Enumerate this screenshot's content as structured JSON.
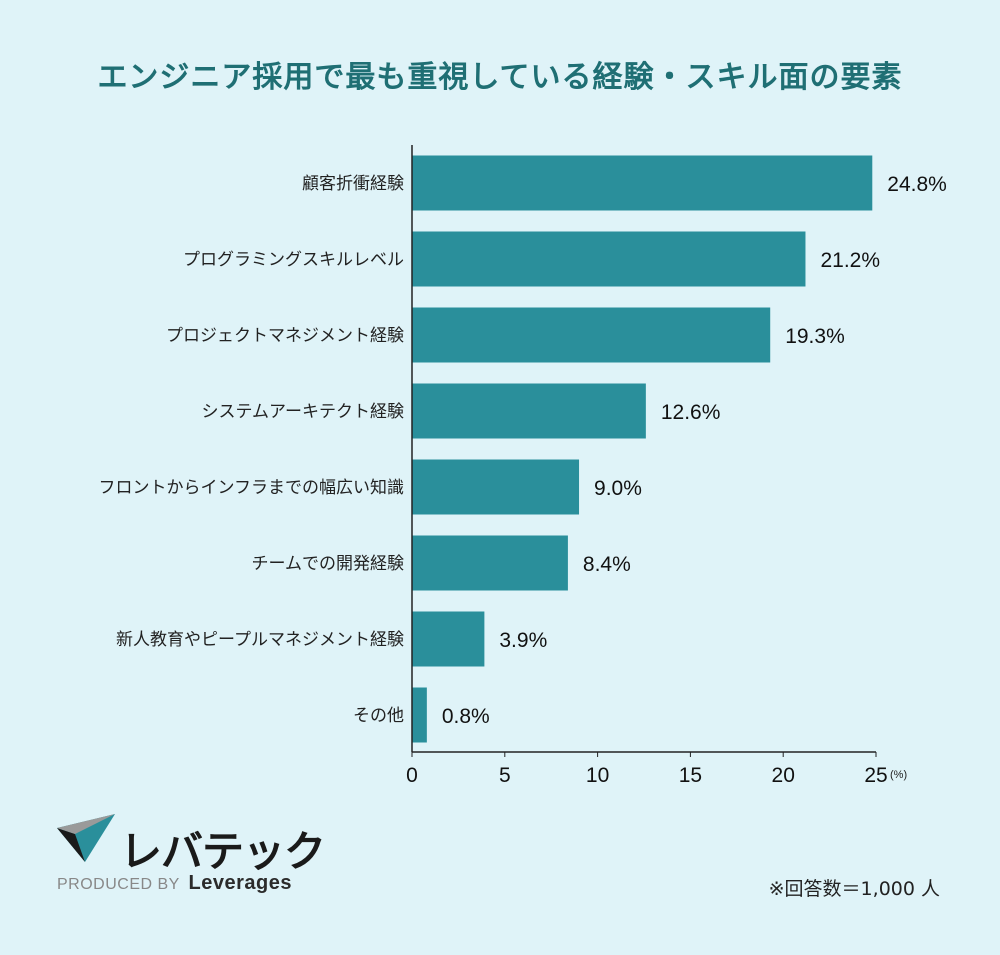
{
  "chart_data": {
    "type": "bar",
    "orientation": "horizontal",
    "title": "エンジニア採用で最も重視している経験・スキル面の要素",
    "categories": [
      "顧客折衝経験",
      "プログラミングスキルレベル",
      "プロジェクトマネジメント経験",
      "システムアーキテクト経験",
      "フロントからインフラまでの幅広い知識",
      "チームでの開発経験",
      "新人教育やピープルマネジメント経験",
      "その他"
    ],
    "values": [
      24.8,
      21.2,
      19.3,
      12.6,
      9.0,
      8.4,
      3.9,
      0.8
    ],
    "value_labels": [
      "24.8%",
      "21.2%",
      "19.3%",
      "12.6%",
      "9.0%",
      "8.4%",
      "3.9%",
      "0.8%"
    ],
    "xlim": [
      0,
      25
    ],
    "xticks": [
      "0",
      "5",
      "10",
      "15",
      "20",
      "25"
    ],
    "xunit": "(%)",
    "grid": false,
    "bar_color": "#2a8f9b"
  },
  "brand": {
    "logo_text": "レバテック",
    "produced_by": "PRODUCED BY",
    "company": "Leverages"
  },
  "note": "※回答数＝1,000 人"
}
